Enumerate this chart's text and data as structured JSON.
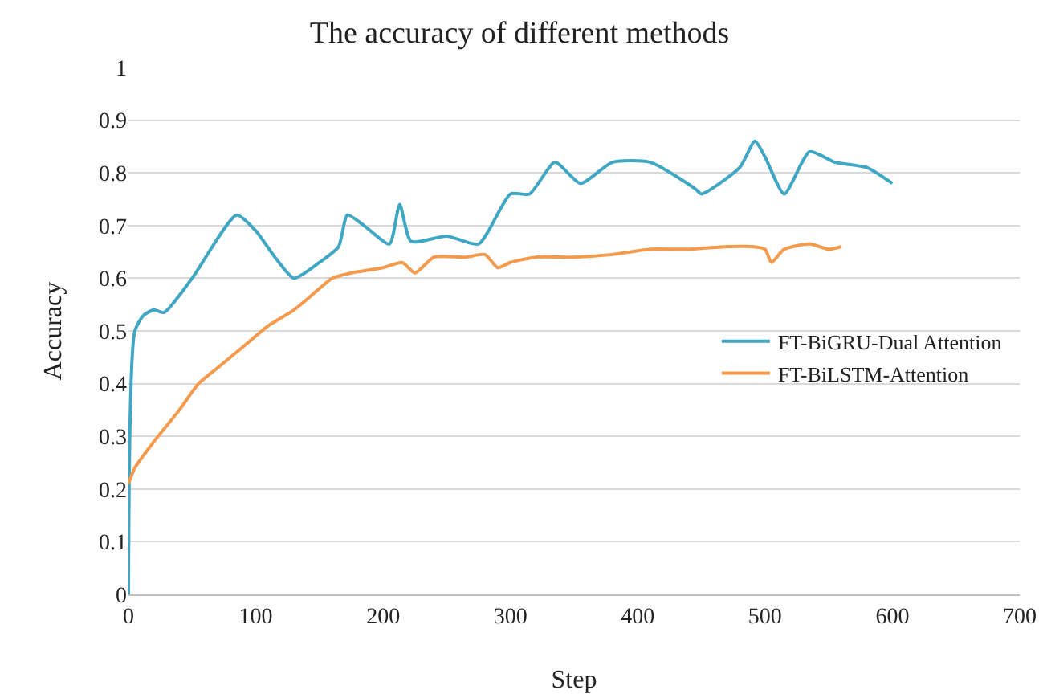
{
  "chart_data": {
    "type": "line",
    "title": "The accuracy of different methods",
    "xlabel": "Step",
    "ylabel": "Accuracy",
    "xlim": [
      0,
      700
    ],
    "xticks": [
      0,
      100,
      200,
      300,
      400,
      500,
      600,
      700
    ],
    "ylim": [
      0,
      1
    ],
    "yticks": [
      0,
      0.1,
      0.2,
      0.3,
      0.4,
      0.5,
      0.6,
      0.7,
      0.8,
      0.9,
      1
    ],
    "grid": "y",
    "legend": "right",
    "marker": "none",
    "line_style": "solid",
    "series": [
      {
        "name": "FT-BiGRU-Dual Attention",
        "color": "#3fa6c4",
        "x": [
          0,
          5,
          12,
          20,
          28,
          50,
          85,
          100,
          115,
          130,
          150,
          165,
          172,
          185,
          205,
          213,
          222,
          250,
          275,
          300,
          315,
          335,
          355,
          380,
          410,
          445,
          450,
          480,
          492,
          500,
          515,
          535,
          555,
          580,
          600
        ],
        "values": [
          0,
          0.5,
          0.53,
          0.54,
          0.535,
          0.6,
          0.72,
          0.69,
          0.64,
          0.6,
          0.63,
          0.66,
          0.72,
          0.7,
          0.665,
          0.74,
          0.67,
          0.68,
          0.665,
          0.76,
          0.76,
          0.82,
          0.78,
          0.82,
          0.82,
          0.77,
          0.76,
          0.81,
          0.86,
          0.83,
          0.76,
          0.84,
          0.82,
          0.81,
          0.78
        ]
      },
      {
        "name": "FT-BiLSTM-Attention",
        "color": "#f59a4c",
        "x": [
          0,
          5,
          20,
          40,
          55,
          70,
          90,
          110,
          130,
          145,
          160,
          175,
          200,
          215,
          225,
          240,
          265,
          280,
          290,
          300,
          320,
          350,
          380,
          410,
          440,
          470,
          490,
          500,
          505,
          515,
          535,
          550,
          560
        ],
        "values": [
          0.21,
          0.24,
          0.29,
          0.35,
          0.4,
          0.43,
          0.47,
          0.51,
          0.54,
          0.57,
          0.6,
          0.61,
          0.62,
          0.63,
          0.61,
          0.64,
          0.64,
          0.645,
          0.62,
          0.63,
          0.64,
          0.64,
          0.645,
          0.655,
          0.655,
          0.66,
          0.66,
          0.655,
          0.63,
          0.655,
          0.665,
          0.655,
          0.66
        ]
      }
    ]
  }
}
